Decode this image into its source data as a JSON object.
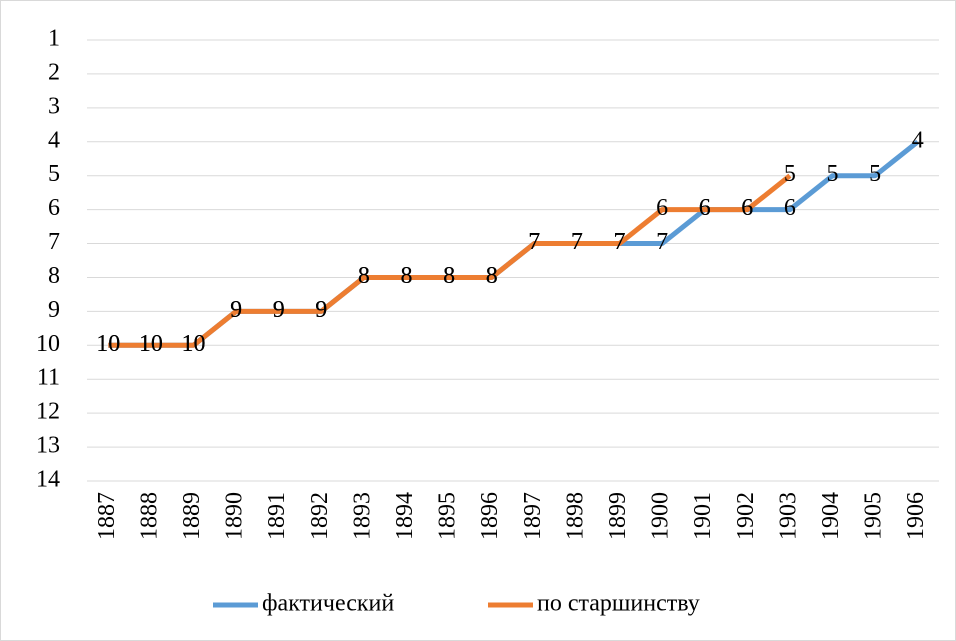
{
  "chart_data": {
    "type": "line",
    "categories": [
      "1887",
      "1888",
      "1889",
      "1890",
      "1891",
      "1892",
      "1893",
      "1894",
      "1895",
      "1896",
      "1897",
      "1898",
      "1899",
      "1900",
      "1901",
      "1902",
      "1903",
      "1904",
      "1905",
      "1906"
    ],
    "series": [
      {
        "name": "фактический",
        "color": "#5b9bd5",
        "values": [
          10,
          10,
          10,
          9,
          9,
          9,
          8,
          8,
          8,
          8,
          7,
          7,
          7,
          7,
          6,
          6,
          6,
          5,
          5,
          4
        ]
      },
      {
        "name": "по старшинству",
        "color": "#ed7d31",
        "values": [
          10,
          10,
          10,
          9,
          9,
          9,
          8,
          8,
          8,
          8,
          7,
          7,
          7,
          6,
          6,
          6,
          5,
          null,
          null,
          null
        ]
      }
    ],
    "ylim": [
      1,
      14
    ],
    "yticks": [
      1,
      2,
      3,
      4,
      5,
      6,
      7,
      8,
      9,
      10,
      11,
      12,
      13,
      14
    ],
    "y_reversed": true,
    "grid": true,
    "data_labels": true,
    "legend": "bottom"
  }
}
